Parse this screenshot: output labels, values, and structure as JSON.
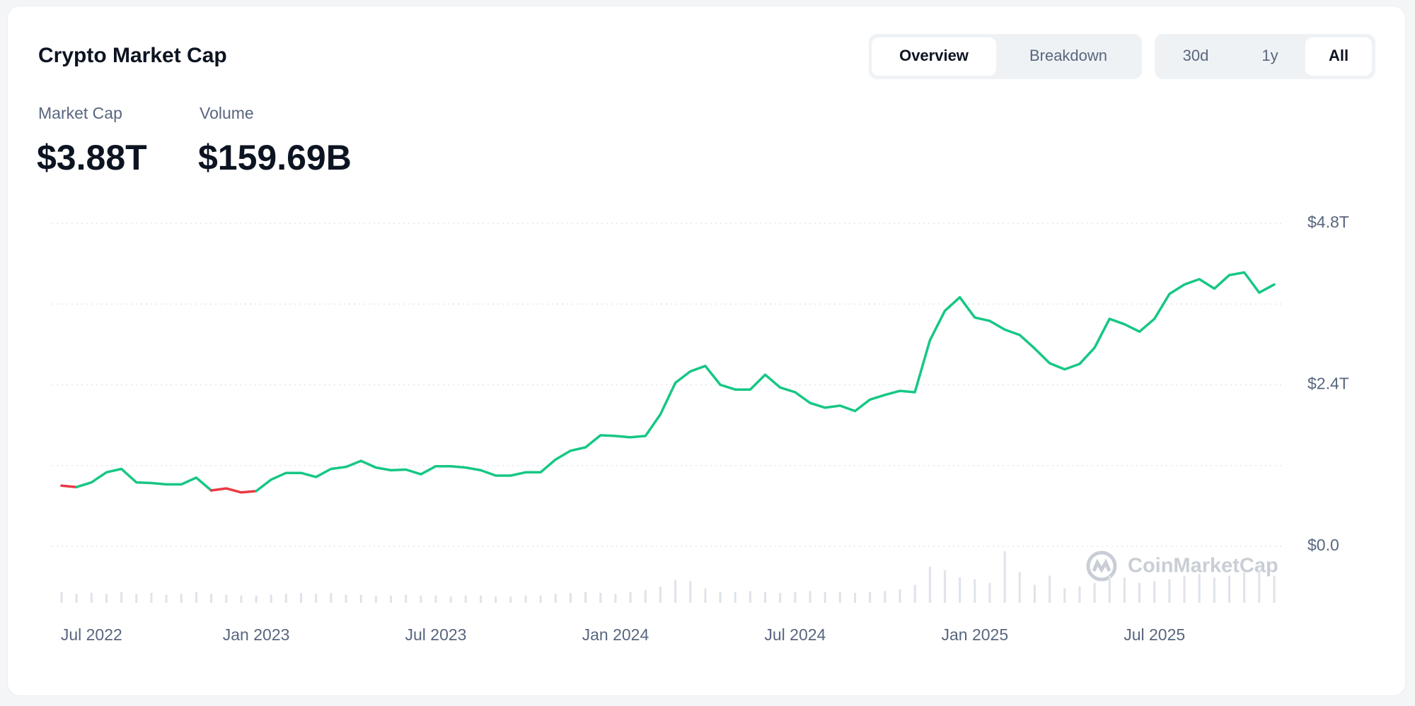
{
  "header": {
    "title": "Crypto Market Cap"
  },
  "tabs": {
    "view": [
      "Overview",
      "Breakdown"
    ],
    "view_active": 0,
    "range": [
      "30d",
      "1y",
      "All"
    ],
    "range_active": 2
  },
  "stats": [
    {
      "label": "Market Cap",
      "value": "$3.88T"
    },
    {
      "label": "Volume",
      "value": "$159.69B"
    }
  ],
  "chart_data": {
    "type": "line",
    "categories": [
      null,
      null,
      "Jul 2022",
      null,
      null,
      null,
      null,
      null,
      null,
      null,
      null,
      null,
      null,
      "Jan 2023",
      null,
      null,
      null,
      null,
      null,
      null,
      null,
      null,
      null,
      null,
      null,
      "Jul 2023",
      null,
      null,
      null,
      null,
      null,
      null,
      null,
      null,
      null,
      null,
      null,
      "Jan 2024",
      null,
      null,
      null,
      null,
      null,
      null,
      null,
      null,
      null,
      null,
      null,
      "Jul 2024",
      null,
      null,
      null,
      null,
      null,
      null,
      null,
      null,
      null,
      null,
      null,
      "Jan 2025",
      null,
      null,
      null,
      null,
      null,
      null,
      null,
      null,
      null,
      null,
      null,
      "Jul 2025",
      null,
      null,
      null,
      null,
      null,
      null,
      null,
      null
    ],
    "values": [
      0.9,
      0.88,
      0.95,
      1.1,
      1.15,
      0.95,
      0.94,
      0.92,
      0.92,
      1.02,
      0.83,
      0.86,
      0.8,
      0.82,
      0.99,
      1.09,
      1.09,
      1.03,
      1.15,
      1.18,
      1.27,
      1.17,
      1.13,
      1.14,
      1.07,
      1.19,
      1.19,
      1.17,
      1.13,
      1.05,
      1.05,
      1.1,
      1.1,
      1.29,
      1.42,
      1.47,
      1.65,
      1.64,
      1.62,
      1.64,
      1.96,
      2.43,
      2.6,
      2.68,
      2.4,
      2.33,
      2.33,
      2.55,
      2.36,
      2.29,
      2.13,
      2.06,
      2.09,
      2.01,
      2.18,
      2.25,
      2.31,
      2.29,
      3.06,
      3.5,
      3.7,
      3.4,
      3.35,
      3.22,
      3.14,
      2.94,
      2.72,
      2.63,
      2.71,
      2.95,
      3.38,
      3.3,
      3.19,
      3.38,
      3.75,
      3.89,
      3.97,
      3.83,
      4.03,
      4.07,
      3.77,
      3.89
    ],
    "color": "#16c784",
    "down_color": "#ea3943",
    "volume": [
      12,
      10,
      11,
      10,
      12,
      10,
      11,
      9,
      10,
      12,
      10,
      9,
      8,
      8,
      9,
      10,
      11,
      10,
      11,
      9,
      9,
      8,
      8,
      9,
      8,
      8,
      7,
      8,
      8,
      7,
      7,
      8,
      8,
      10,
      11,
      12,
      11,
      10,
      12,
      14,
      18,
      25,
      24,
      16,
      12,
      12,
      13,
      12,
      11,
      12,
      13,
      12,
      12,
      11,
      12,
      13,
      15,
      20,
      40,
      36,
      28,
      26,
      22,
      57,
      34,
      20,
      30,
      16,
      18,
      22,
      30,
      28,
      22,
      24,
      26,
      30,
      32,
      28,
      30,
      34,
      36,
      30
    ],
    "volume_color": "#dfe3ea",
    "ylim": [
      0,
      4.8
    ],
    "yticks": [
      {
        "value": 0,
        "label": "$0.0"
      },
      {
        "value": 1.2,
        "label": null
      },
      {
        "value": 2.4,
        "label": "$2.4T"
      },
      {
        "value": 3.6,
        "label": null
      },
      {
        "value": 4.8,
        "label": "$4.8T"
      }
    ],
    "grid": true,
    "watermark": "CoinMarketCap"
  }
}
